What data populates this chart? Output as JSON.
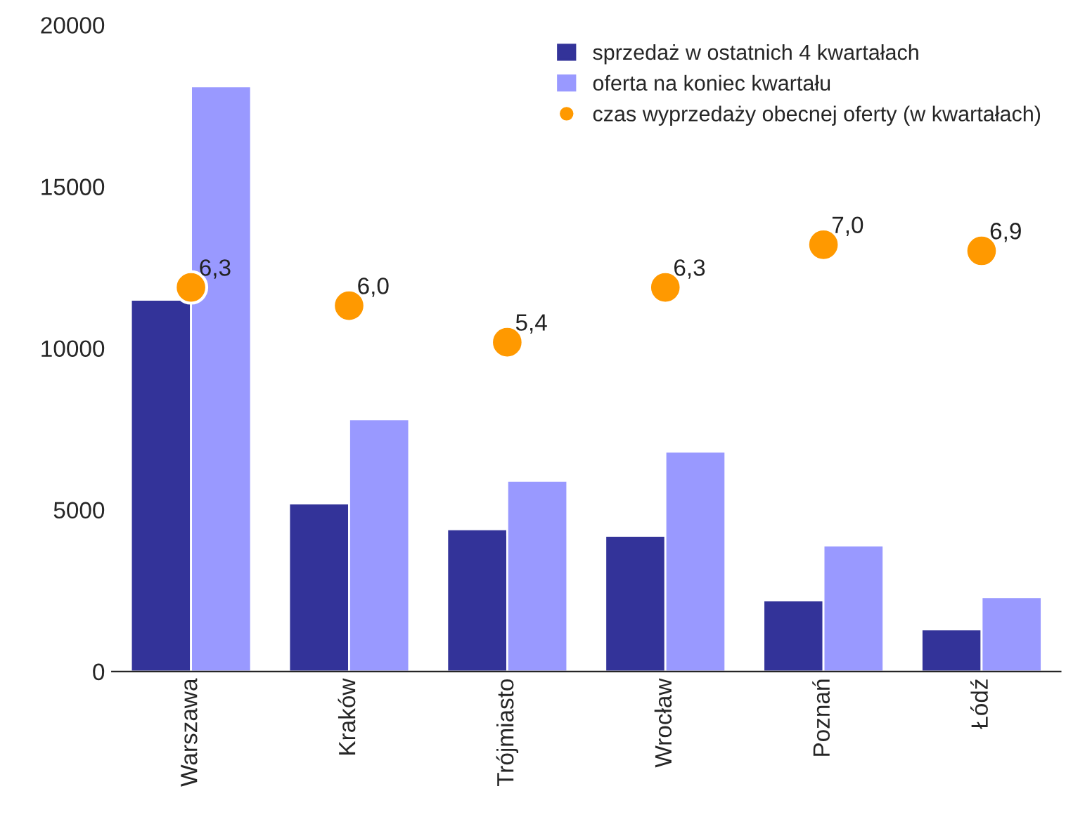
{
  "chart_data": {
    "type": "bar",
    "categories": [
      "Warszawa",
      "Kraków",
      "Trójmiasto",
      "Wrocław",
      "Poznań",
      "Łódź"
    ],
    "series": [
      {
        "name": "sprzedaż w ostatnich 4 kwartałach",
        "color": "#333399",
        "values": [
          11500,
          5200,
          4400,
          4200,
          2200,
          1300
        ]
      },
      {
        "name": "oferta na koniec kwartału",
        "color": "#9999ff",
        "values": [
          18100,
          7800,
          5900,
          6800,
          3900,
          2300
        ]
      },
      {
        "name": "czas wyprzedaży obecnej oferty (w kwartałach)",
        "type": "scatter",
        "axis": "y2",
        "color": "#ff9900",
        "values": [
          6.3,
          6.0,
          5.4,
          6.3,
          7.0,
          6.9
        ],
        "value_labels": [
          "6,3",
          "6,0",
          "5,4",
          "6,3",
          "7,0",
          "6,9"
        ]
      }
    ],
    "ylim": [
      0,
      20000
    ],
    "yticks": [
      0,
      5000,
      10000,
      15000,
      20000
    ],
    "grid": false,
    "legend": "top right",
    "marker": "circle"
  }
}
